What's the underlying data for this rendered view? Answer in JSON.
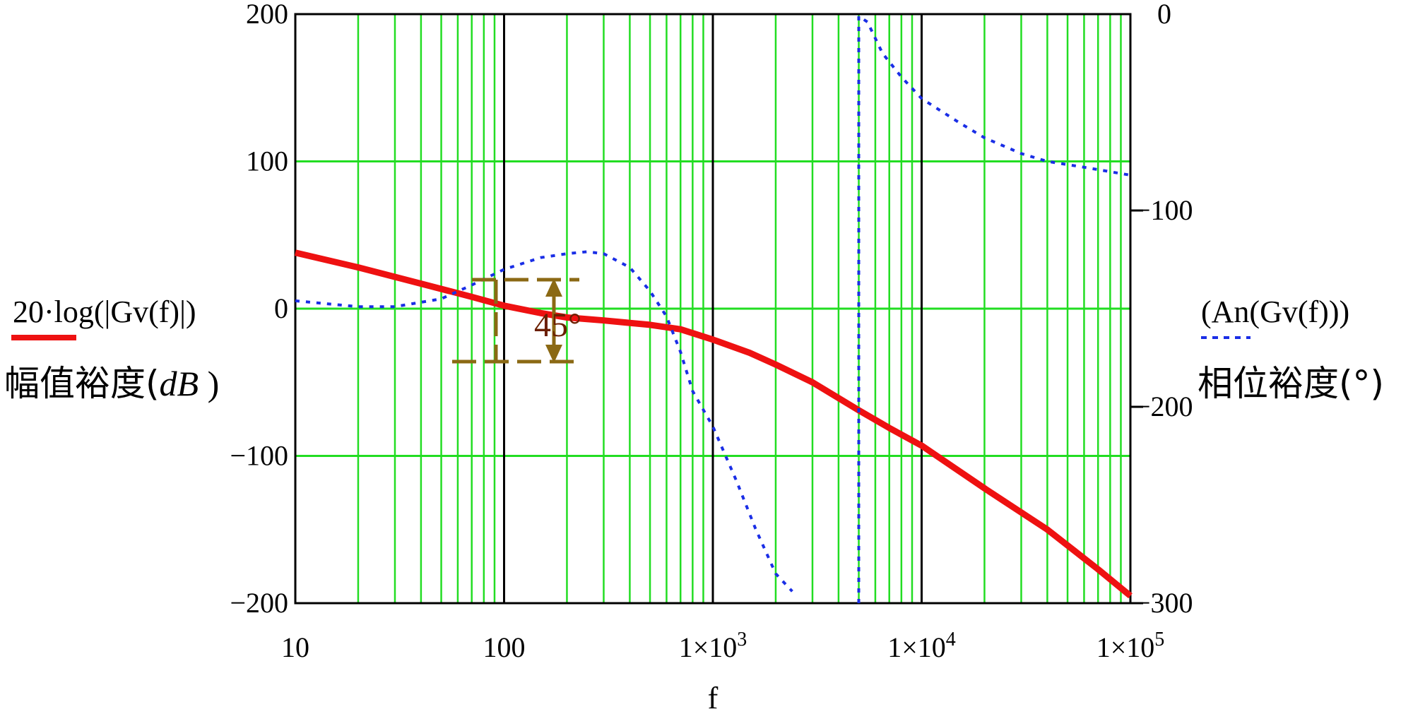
{
  "chart_data": {
    "type": "line",
    "x_scale": "log",
    "xlim": [
      10,
      100000
    ],
    "ylim_left": [
      -200,
      200
    ],
    "ylim_right": [
      -300,
      0
    ],
    "grid": true,
    "x_ticks": [
      "10",
      "100",
      "1×10",
      "1×10",
      "1×10"
    ],
    "x_tick_exponents": [
      "",
      "",
      "3",
      "4",
      "5"
    ],
    "y_ticks_left": [
      "200",
      "100",
      "0",
      "−100",
      "−200"
    ],
    "y_ticks_right": [
      "0",
      "−100",
      "−200",
      "−300"
    ],
    "xlabel": "f",
    "ylabel_left_expr": "20·log(|Gv(f)|)",
    "ylabel_left_text": "幅值裕度(",
    "ylabel_left_unit": "dB",
    "ylabel_left_close": " )",
    "ylabel_right_expr": "(An(Gv(f)))",
    "ylabel_right_text": "相位裕度(°)",
    "annotation": "45°",
    "series": [
      {
        "axis": "left",
        "color": "#ee1111",
        "style": "solid",
        "points": [
          [
            10,
            38
          ],
          [
            20,
            28
          ],
          [
            40,
            17
          ],
          [
            70,
            8
          ],
          [
            100,
            2
          ],
          [
            150,
            -3
          ],
          [
            200,
            -6
          ],
          [
            300,
            -8
          ],
          [
            500,
            -11
          ],
          [
            700,
            -14
          ],
          [
            1000,
            -21
          ],
          [
            1500,
            -30
          ],
          [
            2000,
            -38
          ],
          [
            3000,
            -50
          ],
          [
            5000,
            -69
          ],
          [
            7000,
            -81
          ],
          [
            10000,
            -93
          ],
          [
            20000,
            -122
          ],
          [
            40000,
            -150
          ],
          [
            70000,
            -177
          ],
          [
            100000,
            -195
          ]
        ]
      },
      {
        "axis": "right",
        "color": "#1a2ee6",
        "style": "dotted",
        "segments": [
          [
            [
              10,
              -146
            ],
            [
              20,
              -149
            ],
            [
              30,
              -149
            ],
            [
              50,
              -145
            ],
            [
              70,
              -138
            ],
            [
              100,
              -130
            ],
            [
              150,
              -124
            ],
            [
              200,
              -122
            ],
            [
              250,
              -121
            ],
            [
              300,
              -122
            ],
            [
              400,
              -129
            ],
            [
              500,
              -141
            ],
            [
              600,
              -154
            ],
            [
              700,
              -172
            ],
            [
              800,
              -192
            ],
            [
              1000,
              -210
            ],
            [
              1300,
              -238
            ],
            [
              1600,
              -262
            ],
            [
              2000,
              -285
            ],
            [
              2400,
              -294
            ]
          ],
          [
            [
              5000,
              -300
            ],
            [
              5000,
              -1
            ],
            [
              5500,
              -4
            ],
            [
              6500,
              -20
            ],
            [
              8000,
              -32
            ],
            [
              10000,
              -43
            ],
            [
              15000,
              -55
            ],
            [
              20000,
              -63
            ],
            [
              30000,
              -71
            ],
            [
              40000,
              -75
            ],
            [
              60000,
              -78
            ],
            [
              100000,
              -82
            ]
          ]
        ]
      }
    ]
  }
}
